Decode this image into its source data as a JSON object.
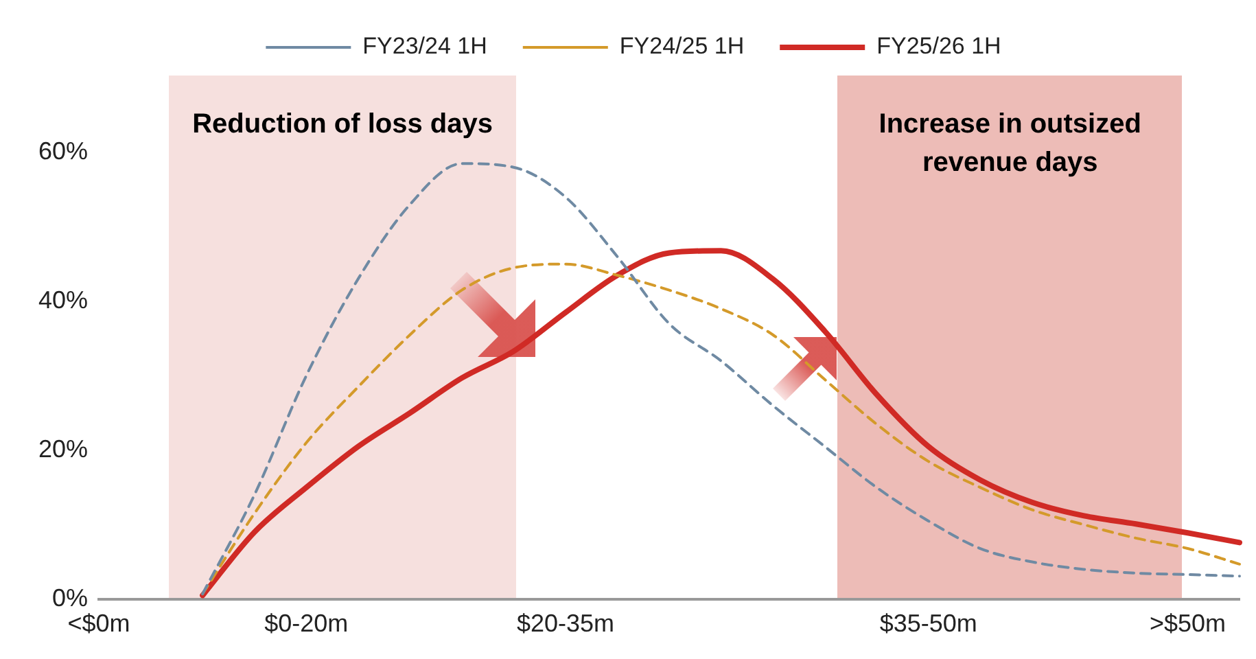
{
  "chart_data": {
    "type": "line",
    "legend": "top",
    "grid": false,
    "marker": "none",
    "categories": [
      "<$0m",
      null,
      null,
      null,
      "$0-20m",
      null,
      null,
      null,
      null,
      "$20-35m",
      null,
      null,
      null,
      null,
      null,
      null,
      "$35-50m",
      null,
      null,
      null,
      null,
      ">$50m",
      null
    ],
    "ylim": [
      0,
      60
    ],
    "yticks": [
      {
        "value": 0,
        "label": "0%"
      },
      {
        "value": 20,
        "label": "20%"
      },
      {
        "value": 40,
        "label": "40%"
      },
      {
        "value": 60,
        "label": "60%"
      }
    ],
    "series": [
      {
        "name": "FY23/24 1H",
        "color": "#6f8aa3",
        "line_style": "dashed",
        "values": [
          null,
          null,
          0.7,
          14,
          30,
          43,
          53,
          58.5,
          58,
          54,
          46,
          37,
          32,
          26,
          20.5,
          15,
          10.5,
          6.8,
          5,
          4,
          3.5,
          3.3,
          3.1
        ]
      },
      {
        "name": "FY24/25 1H",
        "color": "#d49a2a",
        "line_style": "dashed",
        "values": [
          null,
          null,
          0.7,
          11.5,
          21,
          28.5,
          35.5,
          41.5,
          44.5,
          45,
          43.5,
          41.5,
          39,
          35.5,
          29.5,
          23.5,
          18.5,
          15,
          12,
          10,
          8.2,
          6.8,
          4.7
        ]
      },
      {
        "name": "FY25/26 1H",
        "color": "#d02a25",
        "line_style": "solid",
        "values": [
          null,
          null,
          0.5,
          9,
          15,
          20.5,
          25,
          29.7,
          33.3,
          38.5,
          43.5,
          46.5,
          46.8,
          43,
          36,
          27.5,
          20.5,
          16,
          13,
          11.2,
          10.1,
          8.9,
          7.6
        ]
      }
    ],
    "annotations": [
      "Reduction of loss days",
      "Increase in outsized revenue days"
    ]
  }
}
